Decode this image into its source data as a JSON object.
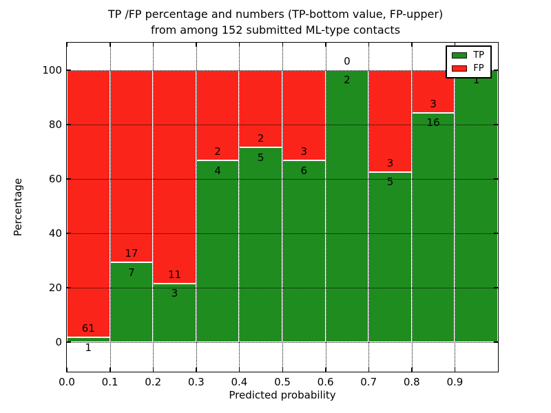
{
  "chart_data": {
    "type": "bar",
    "stacked": true,
    "title": "TP /FP percentage and numbers (TP-bottom value, FP-upper)\nfrom among 152 submitted ML-type contacts",
    "xlabel": "Predicted probability",
    "ylabel": "Percentage",
    "bin_edges": [
      0.0,
      0.1,
      0.2,
      0.3,
      0.4,
      0.5,
      0.6,
      0.7,
      0.8,
      0.9,
      1.0
    ],
    "series": [
      {
        "name": "TP",
        "color": "#1f8c1f",
        "counts": [
          1,
          7,
          3,
          4,
          5,
          6,
          2,
          5,
          16,
          1
        ]
      },
      {
        "name": "FP",
        "color": "#fb241b",
        "counts": [
          61,
          17,
          11,
          2,
          2,
          3,
          0,
          3,
          3,
          0
        ]
      }
    ],
    "tp_percent_per_bin": [
      1.6,
      29.2,
      21.4,
      66.7,
      71.4,
      66.7,
      100.0,
      62.5,
      84.2,
      100.0
    ],
    "total_contacts_in_title": 152,
    "xticks": {
      "values": [
        0.0,
        0.1,
        0.2,
        0.3,
        0.4,
        0.5,
        0.6,
        0.7,
        0.8,
        0.9
      ],
      "labels": [
        "0.0",
        "0.1",
        "0.2",
        "0.3",
        "0.4",
        "0.5",
        "0.6",
        "0.7",
        "0.8",
        "0.9"
      ]
    },
    "yticks": {
      "values": [
        0,
        20,
        40,
        60,
        80,
        100
      ],
      "labels": [
        "0",
        "20",
        "40",
        "60",
        "80",
        "100"
      ]
    },
    "xlim": [
      0.0,
      1.0
    ],
    "ylim": [
      -11,
      110
    ],
    "grid": true,
    "legend": {
      "position": "upper right",
      "entries": [
        "TP",
        "FP"
      ]
    },
    "colors": {
      "axis": "#000000",
      "background": "#ffffff",
      "bar_edge": "#ffffff",
      "grid": "#000000"
    }
  }
}
